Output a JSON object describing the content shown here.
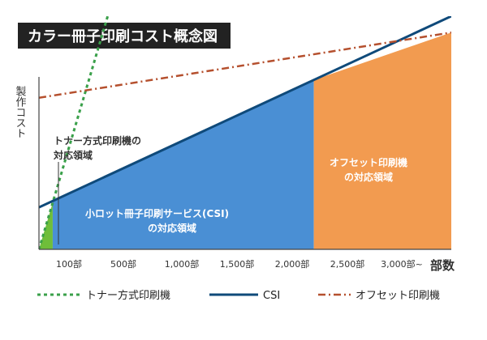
{
  "chart_data": {
    "type": "line",
    "title": "カラー冊子印刷コスト概念図",
    "ylabel": "製作コスト",
    "xlabel": "部数",
    "x_ticks": [
      "100部",
      "500部",
      "1,000部",
      "1,500部",
      "2,000部",
      "2,500部",
      "3,000部~"
    ],
    "xlim": [
      0,
      3000
    ],
    "ylim": [
      0,
      100
    ],
    "grid": false,
    "legend_position": "bottom",
    "series": [
      {
        "name": "トナー方式印刷機",
        "x": [
          0,
          500
        ],
        "y": [
          0,
          100
        ],
        "color": "#3aa04a",
        "style": "dotted"
      },
      {
        "name": "CSI",
        "x": [
          0,
          3000
        ],
        "y": [
          18,
          100
        ],
        "color": "#0f4a7a",
        "style": "solid"
      },
      {
        "name": "オフセット印刷機",
        "x": [
          0,
          3000
        ],
        "y": [
          65,
          93
        ],
        "color": "#b5502e",
        "style": "dash-dot"
      }
    ],
    "regions": [
      {
        "label_lines": [
          "トナー方式印刷機の",
          "対応領域"
        ],
        "x_range": [
          0,
          100
        ],
        "color": "#6fbe3a"
      },
      {
        "label_lines": [
          "小ロット冊子印刷サービス(CSI)",
          "の対応領域"
        ],
        "x_range": [
          100,
          2000
        ],
        "color": "#4a8fd4"
      },
      {
        "label_lines": [
          "オフセット印刷機",
          "の対応領域"
        ],
        "x_range": [
          2000,
          3000
        ],
        "color": "#f29b50"
      }
    ]
  }
}
